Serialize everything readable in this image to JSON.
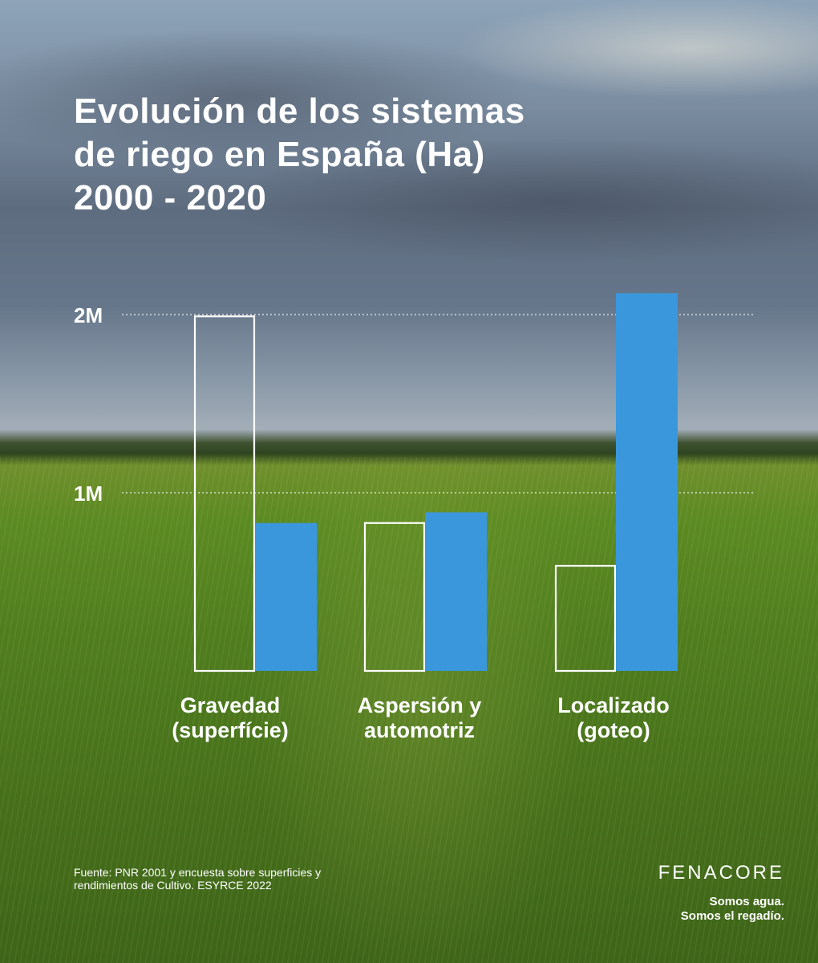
{
  "chart_data": {
    "type": "bar",
    "title_lines": [
      "Evolución de los sistemas",
      "de riego en España (Ha)",
      "2000 - 2020"
    ],
    "categories": [
      [
        "Gravedad",
        "(superfície)"
      ],
      [
        "Aspersión y",
        "automotriz"
      ],
      [
        "Localizado",
        "(goteo)"
      ]
    ],
    "series": [
      {
        "name": "2000",
        "style": "outline",
        "values": [
          1990000,
          830000,
          590000
        ]
      },
      {
        "name": "2020",
        "style": "filled",
        "values": [
          830000,
          890000,
          2120000
        ]
      }
    ],
    "y_ticks": [
      {
        "value": 1000000,
        "label": "1M"
      },
      {
        "value": 2000000,
        "label": "2M"
      }
    ],
    "ylim": [
      0,
      2200000
    ],
    "grid": "dotted at ticks",
    "legend": "none"
  },
  "source": {
    "lines": [
      "Fuente: PNR 2001 y encuesta sobre superficies y",
      "rendimientos de Cultivo. ESYRCE 2022"
    ]
  },
  "brand": {
    "name": "FENACORE",
    "slogan": [
      "Somos agua.",
      "Somos el regadío."
    ]
  },
  "colors": {
    "filled_bar": "#3b97dc",
    "outline_bar": "#ffffff",
    "text": "#ffffff"
  }
}
